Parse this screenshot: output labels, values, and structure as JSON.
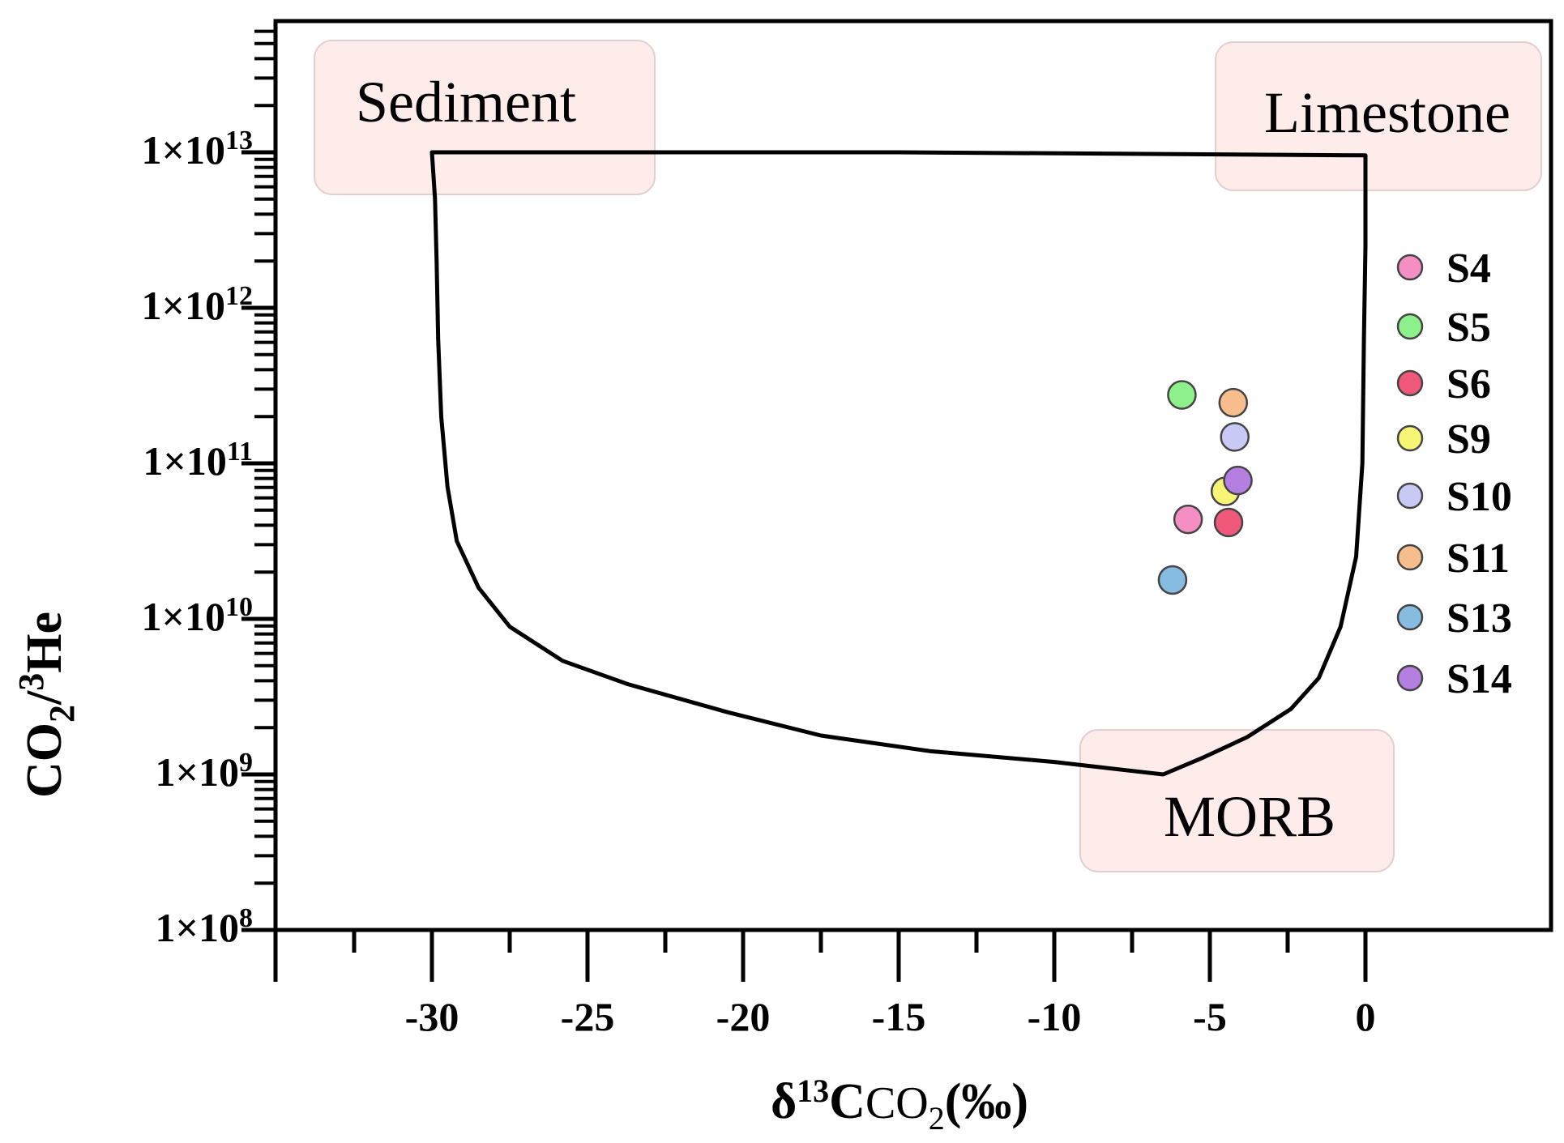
{
  "chart_data": {
    "type": "scatter",
    "xlabel": {
      "base": "δ",
      "sup": "13",
      "mid": "C",
      "sub_main": "CO",
      "sub_index": "2",
      "tail": "(‰)"
    },
    "ylabel": {
      "main": "CO",
      "sub": "2",
      "slash": "/",
      "sup": "3",
      "tail": "He"
    },
    "xlim": [
      -35,
      6
    ],
    "ylim_log10": [
      8,
      13.83
    ],
    "x_ticks": [
      -30,
      -25,
      -20,
      -15,
      -10,
      -5,
      0
    ],
    "x_tick_labels": [
      "-30",
      "-25",
      "-20",
      "-15",
      "-10",
      "-5",
      "0"
    ],
    "y_ticks_log10": [
      8,
      9,
      10,
      11,
      12,
      13
    ],
    "y_tick_labels": [
      {
        "base": "1×10",
        "exp": "8"
      },
      {
        "base": "1×10",
        "exp": "9"
      },
      {
        "base": "1×10",
        "exp": "10"
      },
      {
        "base": "1×10",
        "exp": "11"
      },
      {
        "base": "1×10",
        "exp": "12"
      },
      {
        "base": "1×10",
        "exp": "13"
      }
    ],
    "mixing_envelope": [
      [
        -30,
        13.0
      ],
      [
        -29.9,
        12.7
      ],
      [
        -29.85,
        12.3
      ],
      [
        -29.8,
        11.8
      ],
      [
        -29.7,
        11.3
      ],
      [
        -29.5,
        10.85
      ],
      [
        -29.2,
        10.5
      ],
      [
        -28.5,
        10.2
      ],
      [
        -27.5,
        9.95
      ],
      [
        -25.8,
        9.73
      ],
      [
        -23.7,
        9.58
      ],
      [
        -20.5,
        9.4
      ],
      [
        -17.5,
        9.25
      ],
      [
        -14,
        9.15
      ],
      [
        -10,
        9.08
      ],
      [
        -6.5,
        9.0
      ],
      [
        -5.2,
        9.11
      ],
      [
        -3.8,
        9.24
      ],
      [
        -2.4,
        9.42
      ],
      [
        -1.5,
        9.62
      ],
      [
        -0.8,
        9.95
      ],
      [
        -0.3,
        10.4
      ],
      [
        -0.1,
        11.0
      ],
      [
        -0.05,
        11.8
      ],
      [
        0,
        12.4
      ],
      [
        0,
        12.98
      ],
      [
        -15,
        13.0
      ]
    ],
    "end_members": [
      {
        "name": "Sediment",
        "x": -30,
        "log10_y": 13
      },
      {
        "name": "Limestone",
        "x": 0,
        "log10_y": 13
      },
      {
        "name": "MORB",
        "x": -6.5,
        "log10_y": 9
      }
    ],
    "series": [
      {
        "name": "S4",
        "color": "#f58ec2",
        "x": -5.7,
        "log10_y": 10.64
      },
      {
        "name": "S5",
        "color": "#8df08a",
        "x": -5.9,
        "log10_y": 11.44
      },
      {
        "name": "S6",
        "color": "#f0587a",
        "x": -4.4,
        "log10_y": 10.62
      },
      {
        "name": "S9",
        "color": "#f6f576",
        "x": -4.5,
        "log10_y": 10.82
      },
      {
        "name": "S10",
        "color": "#c9c9f6",
        "x": -4.2,
        "log10_y": 11.17
      },
      {
        "name": "S11",
        "color": "#f8bd8c",
        "x": -4.25,
        "log10_y": 11.39
      },
      {
        "name": "S13",
        "color": "#85bcdf",
        "x": -6.2,
        "log10_y": 10.25
      },
      {
        "name": "S14",
        "color": "#b57fe2",
        "x": -4.1,
        "log10_y": 10.89
      }
    ]
  }
}
